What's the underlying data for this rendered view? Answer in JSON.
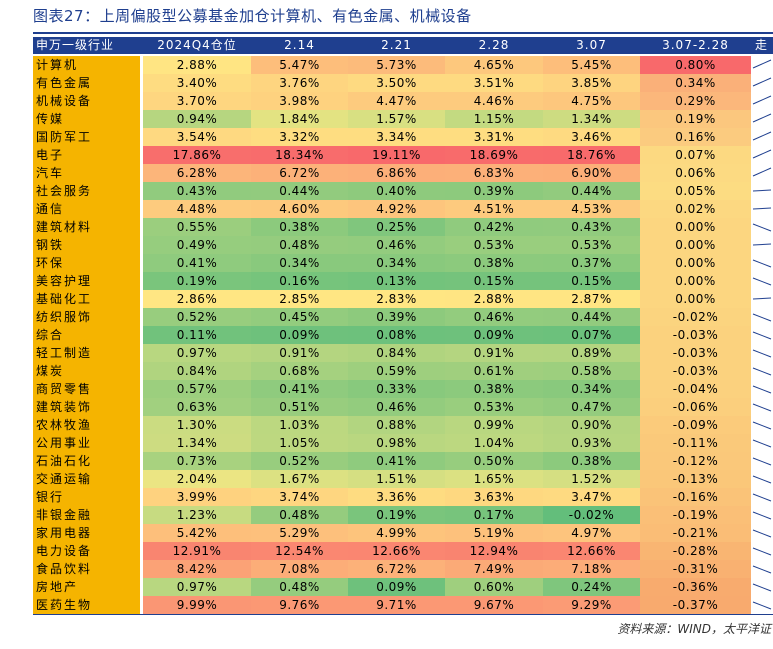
{
  "title": "图表27：上周偏股型公募基金加仓计算机、有色金属、机械设备",
  "source": "资料来源：WIND，太平洋证",
  "columns": [
    "申万一级行业",
    "2024Q4仓位",
    "2.14",
    "2.21",
    "2.28",
    "3.07",
    "3.07-2.28",
    "走"
  ],
  "rows": [
    {
      "name": "计算机",
      "q4": "2.88%",
      "d214": "5.47%",
      "d221": "5.73%",
      "d228": "4.65%",
      "d307": "5.45%",
      "diff": "0.80%",
      "trend": "up"
    },
    {
      "name": "有色金属",
      "q4": "3.40%",
      "d214": "3.76%",
      "d221": "3.50%",
      "d228": "3.51%",
      "d307": "3.85%",
      "diff": "0.34%",
      "trend": "up"
    },
    {
      "name": "机械设备",
      "q4": "3.70%",
      "d214": "3.98%",
      "d221": "4.47%",
      "d228": "4.46%",
      "d307": "4.75%",
      "diff": "0.29%",
      "trend": "up"
    },
    {
      "name": "传媒",
      "q4": "0.94%",
      "d214": "1.84%",
      "d221": "1.57%",
      "d228": "1.15%",
      "d307": "1.34%",
      "diff": "0.19%",
      "trend": "up"
    },
    {
      "name": "国防军工",
      "q4": "3.54%",
      "d214": "3.32%",
      "d221": "3.34%",
      "d228": "3.31%",
      "d307": "3.46%",
      "diff": "0.16%",
      "trend": "up"
    },
    {
      "name": "电子",
      "q4": "17.86%",
      "d214": "18.34%",
      "d221": "19.11%",
      "d228": "18.69%",
      "d307": "18.76%",
      "diff": "0.07%",
      "trend": "up"
    },
    {
      "name": "汽车",
      "q4": "6.28%",
      "d214": "6.72%",
      "d221": "6.86%",
      "d228": "6.83%",
      "d307": "6.90%",
      "diff": "0.06%",
      "trend": "up"
    },
    {
      "name": "社会服务",
      "q4": "0.43%",
      "d214": "0.44%",
      "d221": "0.40%",
      "d228": "0.39%",
      "d307": "0.44%",
      "diff": "0.05%",
      "trend": "flat"
    },
    {
      "name": "通信",
      "q4": "4.48%",
      "d214": "4.60%",
      "d221": "4.92%",
      "d228": "4.51%",
      "d307": "4.53%",
      "diff": "0.02%",
      "trend": "flat"
    },
    {
      "name": "建筑材料",
      "q4": "0.55%",
      "d214": "0.38%",
      "d221": "0.25%",
      "d228": "0.42%",
      "d307": "0.43%",
      "diff": "0.00%",
      "trend": "down"
    },
    {
      "name": "钢铁",
      "q4": "0.49%",
      "d214": "0.48%",
      "d221": "0.46%",
      "d228": "0.53%",
      "d307": "0.53%",
      "diff": "0.00%",
      "trend": "flat"
    },
    {
      "name": "环保",
      "q4": "0.41%",
      "d214": "0.34%",
      "d221": "0.34%",
      "d228": "0.38%",
      "d307": "0.37%",
      "diff": "0.00%",
      "trend": "down"
    },
    {
      "name": "美容护理",
      "q4": "0.19%",
      "d214": "0.16%",
      "d221": "0.13%",
      "d228": "0.15%",
      "d307": "0.15%",
      "diff": "0.00%",
      "trend": "down"
    },
    {
      "name": "基础化工",
      "q4": "2.86%",
      "d214": "2.85%",
      "d221": "2.83%",
      "d228": "2.88%",
      "d307": "2.87%",
      "diff": "0.00%",
      "trend": "flat"
    },
    {
      "name": "纺织服饰",
      "q4": "0.52%",
      "d214": "0.45%",
      "d221": "0.39%",
      "d228": "0.46%",
      "d307": "0.44%",
      "diff": "-0.02%",
      "trend": "down"
    },
    {
      "name": "综合",
      "q4": "0.11%",
      "d214": "0.09%",
      "d221": "0.08%",
      "d228": "0.09%",
      "d307": "0.07%",
      "diff": "-0.03%",
      "trend": "down"
    },
    {
      "name": "轻工制造",
      "q4": "0.97%",
      "d214": "0.91%",
      "d221": "0.84%",
      "d228": "0.91%",
      "d307": "0.89%",
      "diff": "-0.03%",
      "trend": "down"
    },
    {
      "name": "煤炭",
      "q4": "0.84%",
      "d214": "0.68%",
      "d221": "0.59%",
      "d228": "0.61%",
      "d307": "0.58%",
      "diff": "-0.03%",
      "trend": "down"
    },
    {
      "name": "商贸零售",
      "q4": "0.57%",
      "d214": "0.41%",
      "d221": "0.33%",
      "d228": "0.38%",
      "d307": "0.34%",
      "diff": "-0.04%",
      "trend": "down"
    },
    {
      "name": "建筑装饰",
      "q4": "0.63%",
      "d214": "0.51%",
      "d221": "0.46%",
      "d228": "0.53%",
      "d307": "0.47%",
      "diff": "-0.06%",
      "trend": "down"
    },
    {
      "name": "农林牧渔",
      "q4": "1.30%",
      "d214": "1.03%",
      "d221": "0.88%",
      "d228": "0.99%",
      "d307": "0.90%",
      "diff": "-0.09%",
      "trend": "down"
    },
    {
      "name": "公用事业",
      "q4": "1.34%",
      "d214": "1.05%",
      "d221": "0.98%",
      "d228": "1.04%",
      "d307": "0.93%",
      "diff": "-0.11%",
      "trend": "down"
    },
    {
      "name": "石油石化",
      "q4": "0.73%",
      "d214": "0.52%",
      "d221": "0.41%",
      "d228": "0.50%",
      "d307": "0.38%",
      "diff": "-0.12%",
      "trend": "down"
    },
    {
      "name": "交通运输",
      "q4": "2.04%",
      "d214": "1.67%",
      "d221": "1.51%",
      "d228": "1.65%",
      "d307": "1.52%",
      "diff": "-0.13%",
      "trend": "down"
    },
    {
      "name": "银行",
      "q4": "3.99%",
      "d214": "3.74%",
      "d221": "3.36%",
      "d228": "3.63%",
      "d307": "3.47%",
      "diff": "-0.16%",
      "trend": "down"
    },
    {
      "name": "非银金融",
      "q4": "1.23%",
      "d214": "0.48%",
      "d221": "0.19%",
      "d228": "0.17%",
      "d307": "-0.02%",
      "diff": "-0.19%",
      "trend": "down"
    },
    {
      "name": "家用电器",
      "q4": "5.42%",
      "d214": "5.29%",
      "d221": "4.99%",
      "d228": "5.19%",
      "d307": "4.97%",
      "diff": "-0.21%",
      "trend": "down"
    },
    {
      "name": "电力设备",
      "q4": "12.91%",
      "d214": "12.54%",
      "d221": "12.66%",
      "d228": "12.94%",
      "d307": "12.66%",
      "diff": "-0.28%",
      "trend": "down"
    },
    {
      "name": "食品饮料",
      "q4": "8.42%",
      "d214": "7.08%",
      "d221": "6.72%",
      "d228": "7.49%",
      "d307": "7.18%",
      "diff": "-0.31%",
      "trend": "down"
    },
    {
      "name": "房地产",
      "q4": "0.97%",
      "d214": "0.48%",
      "d221": "0.09%",
      "d228": "0.60%",
      "d307": "0.24%",
      "diff": "-0.36%",
      "trend": "down"
    },
    {
      "name": "医药生物",
      "q4": "9.99%",
      "d214": "9.76%",
      "d221": "9.71%",
      "d228": "9.67%",
      "d307": "9.29%",
      "diff": "-0.37%",
      "trend": "down"
    }
  ]
}
